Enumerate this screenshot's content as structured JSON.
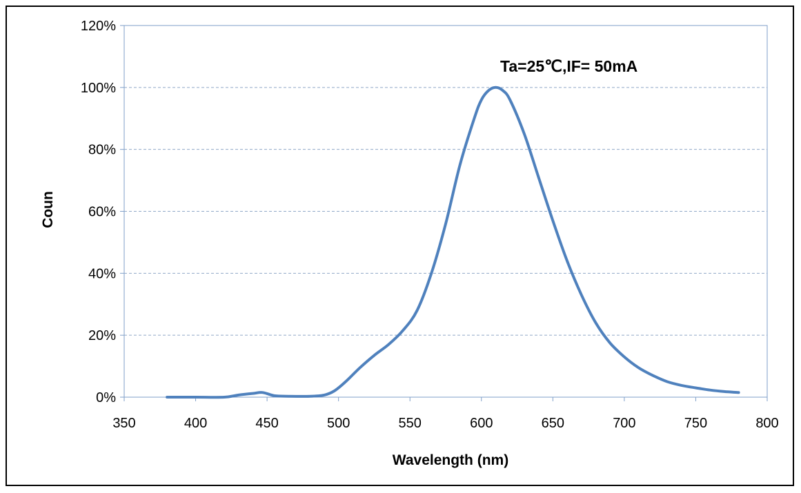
{
  "chart_data": {
    "type": "line",
    "title": "",
    "xlabel": "Wavelength (nm)",
    "ylabel": "Coun",
    "xlim": [
      350,
      800
    ],
    "ylim": [
      0,
      1.2
    ],
    "xticks": [
      350,
      400,
      450,
      500,
      550,
      600,
      650,
      700,
      750,
      800
    ],
    "yticks": [
      0,
      0.2,
      0.4,
      0.6,
      0.8,
      1.0,
      1.2
    ],
    "ytick_labels": [
      "0%",
      "20%",
      "40%",
      "60%",
      "80%",
      "100%",
      "120%"
    ],
    "grid": "horizontal dashed",
    "line_color": "#4F81BD",
    "annotation": "Ta=25℃,IF=  50mA",
    "series": [
      {
        "x": [
          380,
          400,
          420,
          430,
          440,
          447,
          455,
          465,
          480,
          490,
          497,
          505,
          515,
          525,
          535,
          545,
          555,
          565,
          575,
          585,
          595,
          600,
          605,
          610,
          615,
          620,
          630,
          640,
          650,
          660,
          670,
          680,
          690,
          700,
          710,
          720,
          730,
          740,
          750,
          760,
          770,
          780
        ],
        "y": [
          0,
          0,
          0,
          0.007,
          0.012,
          0.015,
          0.005,
          0.003,
          0.003,
          0.007,
          0.02,
          0.05,
          0.095,
          0.135,
          0.17,
          0.215,
          0.28,
          0.4,
          0.56,
          0.75,
          0.9,
          0.96,
          0.99,
          1.0,
          0.99,
          0.96,
          0.85,
          0.71,
          0.57,
          0.44,
          0.33,
          0.24,
          0.175,
          0.13,
          0.095,
          0.07,
          0.05,
          0.038,
          0.03,
          0.023,
          0.018,
          0.015
        ]
      }
    ]
  }
}
